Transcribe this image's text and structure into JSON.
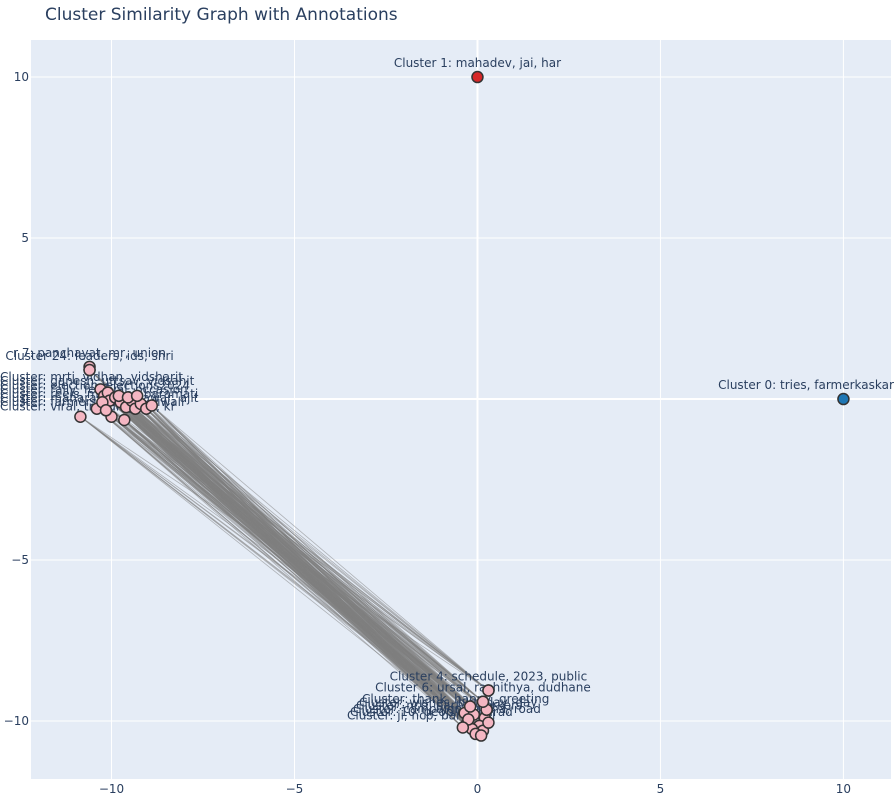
{
  "chart_data": {
    "type": "scatter",
    "title": "Cluster Similarity Graph with Annotations",
    "xlabel": "",
    "ylabel": "",
    "xlim": [
      -12.2,
      11.3
    ],
    "ylim": [
      -11.8,
      11.15
    ],
    "x_ticks": [
      -10,
      -5,
      0,
      5,
      10
    ],
    "y_ticks": [
      -10,
      -5,
      0,
      5,
      10
    ],
    "x_tick_labels": [
      "−10",
      "−5",
      "0",
      "5",
      "10"
    ],
    "y_tick_labels": [
      "−10",
      "−5",
      "0",
      "5",
      "10"
    ],
    "grid": true,
    "legend": "none",
    "colors": {
      "plot_background": "#e5ecf6",
      "grid": "#ffffff",
      "edge": "#808080",
      "cluster_0": "#1f77b4",
      "cluster_1": "#d62728",
      "other_clusters": "#f4b6c2",
      "marker_outline": "#333333"
    },
    "labeled_nodes": [
      {
        "label": "Cluster 0: tries, farmerkaskar",
        "x": 10.0,
        "y": 0.0,
        "color": "#1f77b4"
      },
      {
        "label": "Cluster 1: mahadev, jai, har",
        "x": 0.0,
        "y": 10.0,
        "color": "#d62728"
      },
      {
        "label": "r 7: panchayat, mr, union",
        "x": -10.6,
        "y": 1.0,
        "color": "#f4b6c2"
      },
      {
        "label": "Cluster 24: leaders, ids, shri",
        "x": -10.6,
        "y": 0.9,
        "color": "#f4b6c2"
      },
      {
        "label": "Cluster 4: schedule, 2023, public",
        "x": 0.3,
        "y": -9.05,
        "color": "#f4b6c2"
      },
      {
        "label": "Cluster 6: ursal, rashithya, dudhane",
        "x": 0.15,
        "y": -9.4,
        "color": "#f4b6c2"
      }
    ],
    "overlapping_labels_left": [
      "Cluster: mrtj, vidhan, vidsharit",
      "Cluster: ganesh, uttsav, vidsahit",
      "Cluster: election, elections2024",
      "Cluster: rally, festival, occasion",
      "Cluster: reels, mumbai, baramati",
      "Cluster: maharashtra, pawar, ajit",
      "Cluster: farmers, jayant, diwali",
      "Cluster: viral, trending, ke, kr"
    ],
    "overlapping_labels_bottom": [
      "Cluster: thank, happy, greeting",
      "Cluster: wishes, birthday, day",
      "Cluster: ncp, party, workers",
      "Cluster: campaign, sabha, road",
      "Cluster: 10: people, sharad",
      "Cluster: ji, ncp, baramati"
    ],
    "group_left_points": [
      [
        -10.6,
        0.9
      ],
      [
        -10.3,
        0.3
      ],
      [
        -10.2,
        0.1
      ],
      [
        -10.1,
        0.2
      ],
      [
        -10.05,
        -0.05
      ],
      [
        -9.9,
        0.05
      ],
      [
        -9.75,
        -0.1
      ],
      [
        -9.6,
        -0.25
      ],
      [
        -9.45,
        -0.05
      ],
      [
        -9.35,
        -0.3
      ],
      [
        -9.2,
        -0.15
      ],
      [
        -9.05,
        -0.3
      ],
      [
        -8.9,
        -0.2
      ],
      [
        -10.4,
        -0.3
      ],
      [
        -10.0,
        -0.55
      ],
      [
        -9.65,
        -0.65
      ],
      [
        -10.85,
        -0.55
      ],
      [
        -9.8,
        0.1
      ],
      [
        -10.25,
        -0.1
      ],
      [
        -9.55,
        0.05
      ],
      [
        -10.15,
        -0.35
      ],
      [
        -9.3,
        0.1
      ]
    ],
    "group_bottom_points": [
      [
        0.3,
        -9.05
      ],
      [
        0.15,
        -9.4
      ],
      [
        -0.35,
        -9.75
      ],
      [
        -0.1,
        -9.8
      ],
      [
        0.2,
        -9.9
      ],
      [
        -0.3,
        -10.1
      ],
      [
        0.05,
        -10.15
      ],
      [
        -0.15,
        -10.25
      ],
      [
        0.15,
        -10.3
      ],
      [
        -0.05,
        -10.4
      ],
      [
        0.1,
        -10.45
      ],
      [
        -0.25,
        -9.95
      ],
      [
        0.3,
        -10.05
      ],
      [
        -0.4,
        -10.2
      ],
      [
        0.25,
        -9.65
      ],
      [
        -0.2,
        -9.55
      ]
    ]
  }
}
